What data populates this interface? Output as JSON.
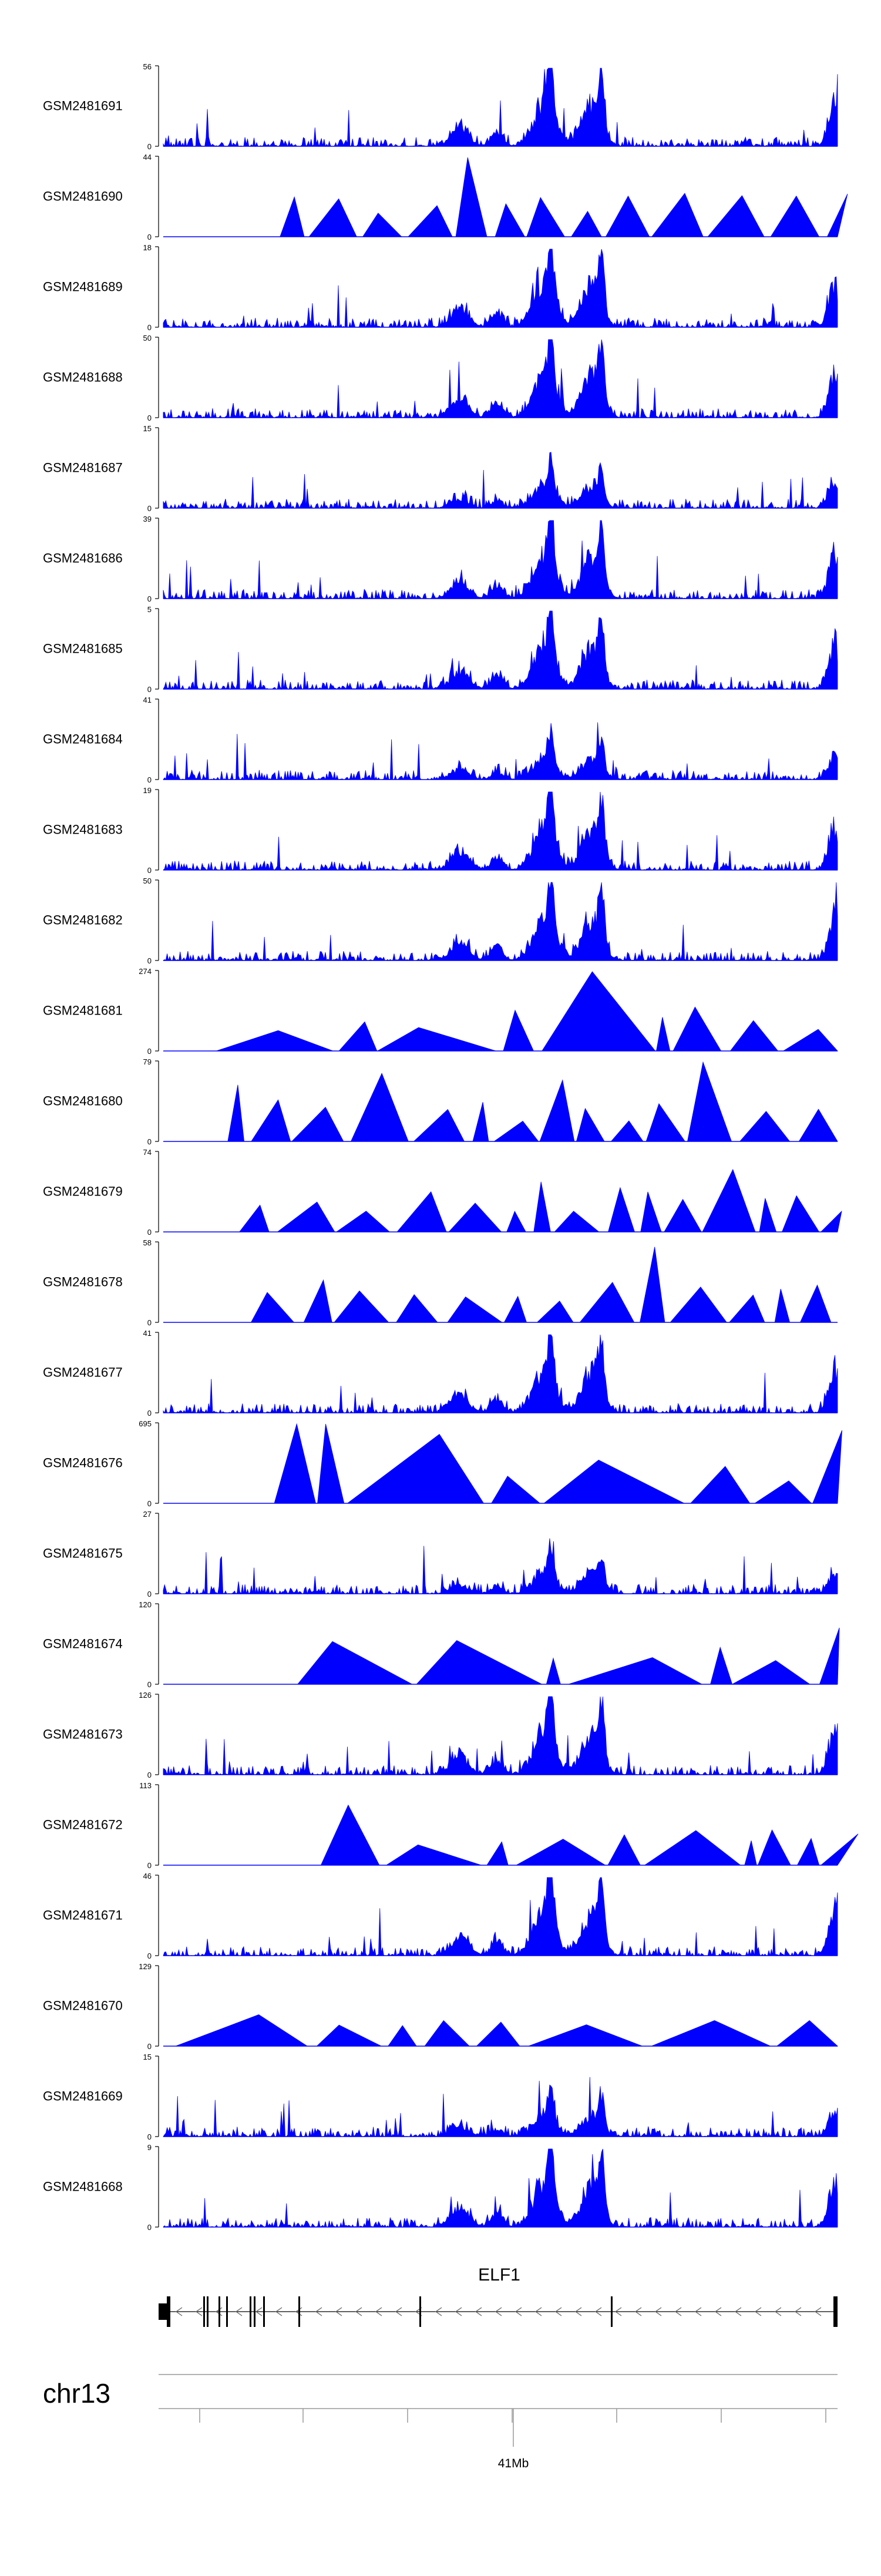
{
  "chart_data": {
    "type": "area",
    "color": "#0000ff",
    "tracks": [
      {
        "name": "GSM2481691",
        "ymax": 56,
        "ymin": 0,
        "pattern": "noise"
      },
      {
        "name": "GSM2481690",
        "ymax": 44,
        "ymin": 0,
        "pattern": "sparse"
      },
      {
        "name": "GSM2481689",
        "ymax": 18,
        "ymin": 0,
        "pattern": "noise"
      },
      {
        "name": "GSM2481688",
        "ymax": 50,
        "ymin": 0,
        "pattern": "noise"
      },
      {
        "name": "GSM2481687",
        "ymax": 15,
        "ymin": 0,
        "pattern": "noise"
      },
      {
        "name": "GSM2481686",
        "ymax": 39,
        "ymin": 0,
        "pattern": "noise"
      },
      {
        "name": "GSM2481685",
        "ymax": 5,
        "ymin": 0,
        "pattern": "noise"
      },
      {
        "name": "GSM2481684",
        "ymax": 41,
        "ymin": 0,
        "pattern": "noise"
      },
      {
        "name": "GSM2481683",
        "ymax": 19,
        "ymin": 0,
        "pattern": "noise"
      },
      {
        "name": "GSM2481682",
        "ymax": 50,
        "ymin": 0,
        "pattern": "noise"
      },
      {
        "name": "GSM2481681",
        "ymax": 274,
        "ymin": 0,
        "pattern": "sparse"
      },
      {
        "name": "GSM2481680",
        "ymax": 79,
        "ymin": 0,
        "pattern": "sparse"
      },
      {
        "name": "GSM2481679",
        "ymax": 74,
        "ymin": 0,
        "pattern": "sparse"
      },
      {
        "name": "GSM2481678",
        "ymax": 58,
        "ymin": 0,
        "pattern": "sparse"
      },
      {
        "name": "GSM2481677",
        "ymax": 41,
        "ymin": 0,
        "pattern": "noise"
      },
      {
        "name": "GSM2481676",
        "ymax": 695,
        "ymin": 0,
        "pattern": "sparse"
      },
      {
        "name": "GSM2481675",
        "ymax": 27,
        "ymin": 0,
        "pattern": "noise"
      },
      {
        "name": "GSM2481674",
        "ymax": 120,
        "ymin": 0,
        "pattern": "sparse"
      },
      {
        "name": "GSM2481673",
        "ymax": 126,
        "ymin": 0,
        "pattern": "noise"
      },
      {
        "name": "GSM2481672",
        "ymax": 113,
        "ymin": 0,
        "pattern": "sparse"
      },
      {
        "name": "GSM2481671",
        "ymax": 46,
        "ymin": 0,
        "pattern": "noise"
      },
      {
        "name": "GSM2481670",
        "ymax": 129,
        "ymin": 0,
        "pattern": "sparse"
      },
      {
        "name": "GSM2481669",
        "ymax": 15,
        "ymin": 0,
        "pattern": "noise"
      },
      {
        "name": "GSM2481668",
        "ymax": 9,
        "ymin": 0,
        "pattern": "noise"
      }
    ],
    "gene": {
      "name": "ELF1",
      "strand": "-"
    },
    "chromosome": "chr13",
    "axis": {
      "tick_label": "41Mb"
    }
  }
}
